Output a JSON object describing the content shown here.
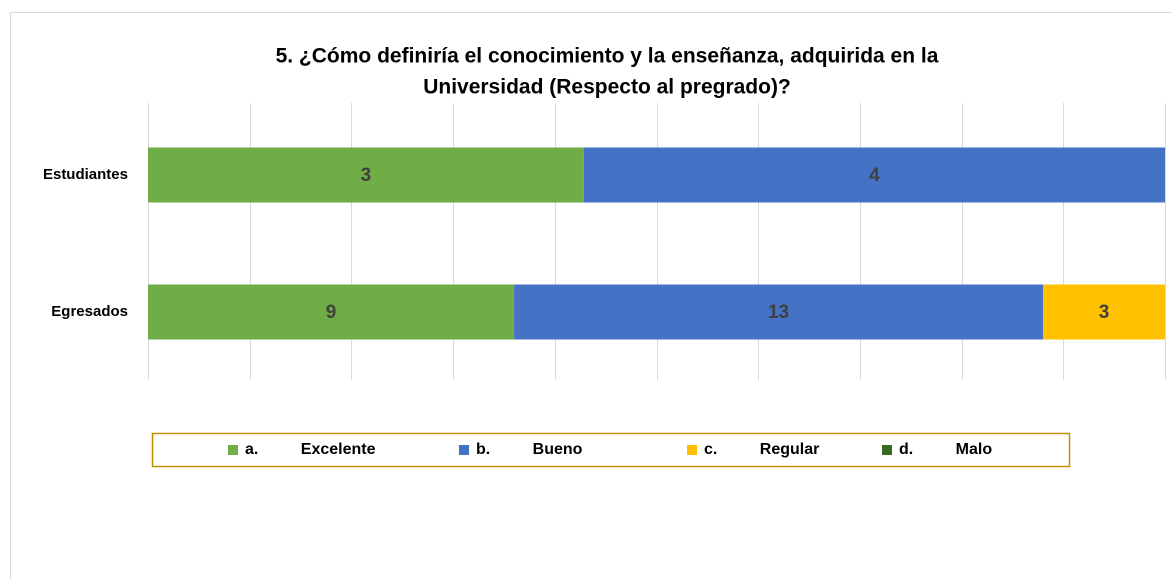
{
  "chart_data": {
    "type": "bar",
    "orientation": "horizontal",
    "stacking": "percent",
    "title": [
      "5. ¿Cómo definiría el conocimiento y la enseñanza, adquirida en la",
      "Universidad (Respecto al pregrado)?"
    ],
    "categories": [
      "Estudiantes",
      "Egresados"
    ],
    "series": [
      {
        "name": "a. Excelente",
        "color": "#70ad47",
        "values": [
          3,
          9
        ]
      },
      {
        "name": "b. Bueno",
        "color": "#4472c4",
        "values": [
          4,
          13
        ]
      },
      {
        "name": "c. Regular",
        "color": "#ffc000",
        "values": [
          0,
          3
        ]
      },
      {
        "name": "d. Malo",
        "color": "#3a6b24",
        "values": [
          0,
          0
        ]
      }
    ],
    "xlim": [
      0,
      100
    ],
    "xticks": [
      0,
      10,
      20,
      30,
      40,
      50,
      60,
      70,
      80,
      90,
      100
    ],
    "tick_labels": false,
    "grid": true,
    "legend": "bottom"
  }
}
